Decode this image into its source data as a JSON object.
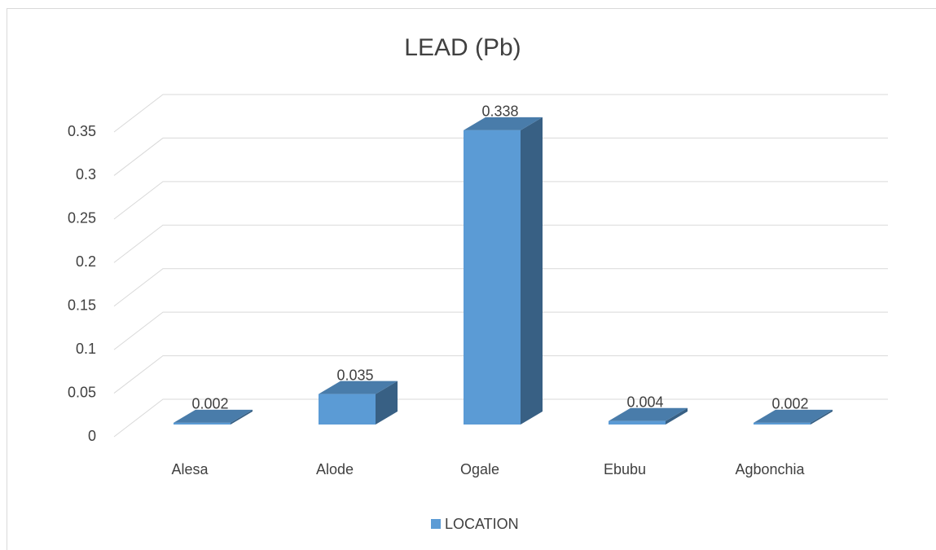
{
  "chart_data": {
    "type": "bar3d",
    "title": "LEAD (Pb)",
    "categories": [
      "Alesa",
      "Alode",
      "Ogale",
      "Ebubu",
      "Agbonchia"
    ],
    "series": [
      {
        "name": "LOCATION",
        "color": "#5b9bd5",
        "values": [
          0.002,
          0.035,
          0.338,
          0.004,
          0.002
        ]
      }
    ],
    "ylim": [
      0,
      0.35
    ],
    "yticks": [
      0,
      0.05,
      0.1,
      0.15,
      0.2,
      0.25,
      0.3,
      0.35
    ],
    "grid": true,
    "legend": "bottom"
  }
}
